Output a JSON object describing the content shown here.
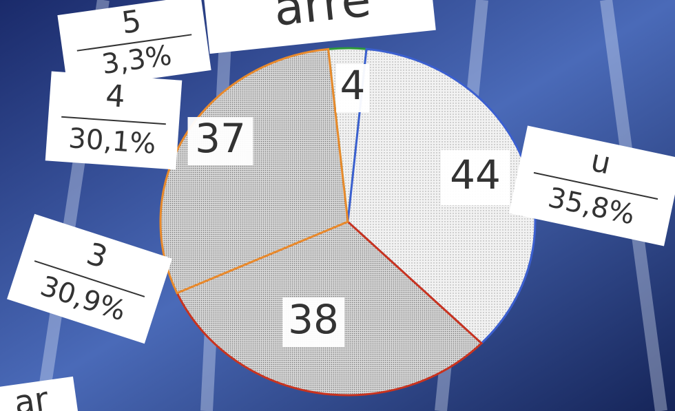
{
  "chart_data": {
    "type": "pie",
    "title": "arre",
    "footer": "ar",
    "categories": [
      "5",
      "u",
      "3",
      "4"
    ],
    "values": [
      4,
      44,
      38,
      37
    ],
    "shares": [
      "3,3%",
      "35,8%",
      "30,9%",
      "30,1%"
    ],
    "colors": [
      "#2e9a3a",
      "#3b5fd0",
      "#c8331f",
      "#e88a2c"
    ]
  }
}
